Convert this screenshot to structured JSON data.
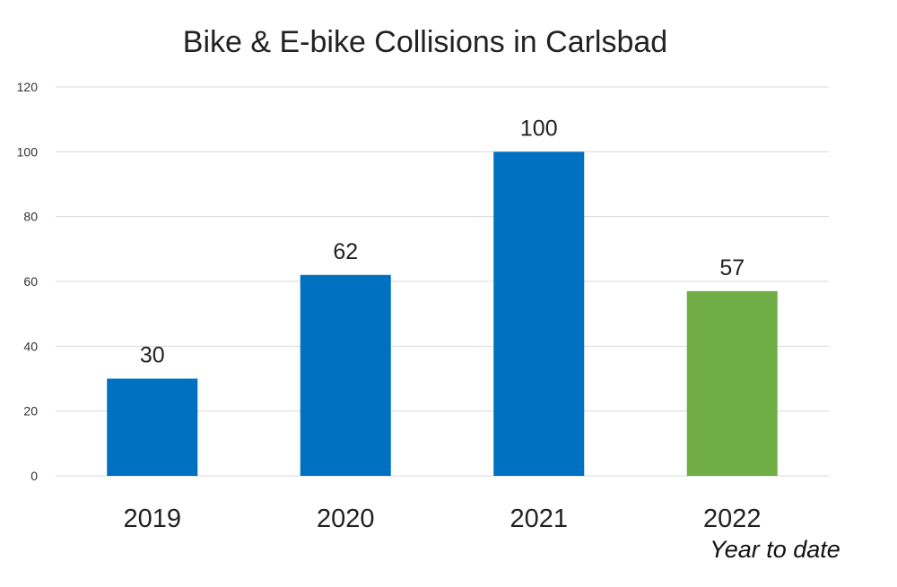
{
  "chart_data": {
    "type": "bar",
    "title": "Bike & E-bike Collisions in Carlsbad",
    "categories": [
      "2019",
      "2020",
      "2021",
      "2022"
    ],
    "values": [
      30,
      62,
      100,
      57
    ],
    "data_labels": [
      "30",
      "62",
      "100",
      "57"
    ],
    "bar_colors": [
      "#0070c0",
      "#0070c0",
      "#0070c0",
      "#70ad47"
    ],
    "ylim": [
      0,
      120
    ],
    "yticks": [
      0,
      20,
      40,
      60,
      80,
      100,
      120
    ],
    "ytick_labels": [
      "0",
      "20",
      "40",
      "60",
      "80",
      "100",
      "120"
    ],
    "grid": true,
    "xlabel": "",
    "ylabel": "",
    "annotation": "Year to date"
  }
}
